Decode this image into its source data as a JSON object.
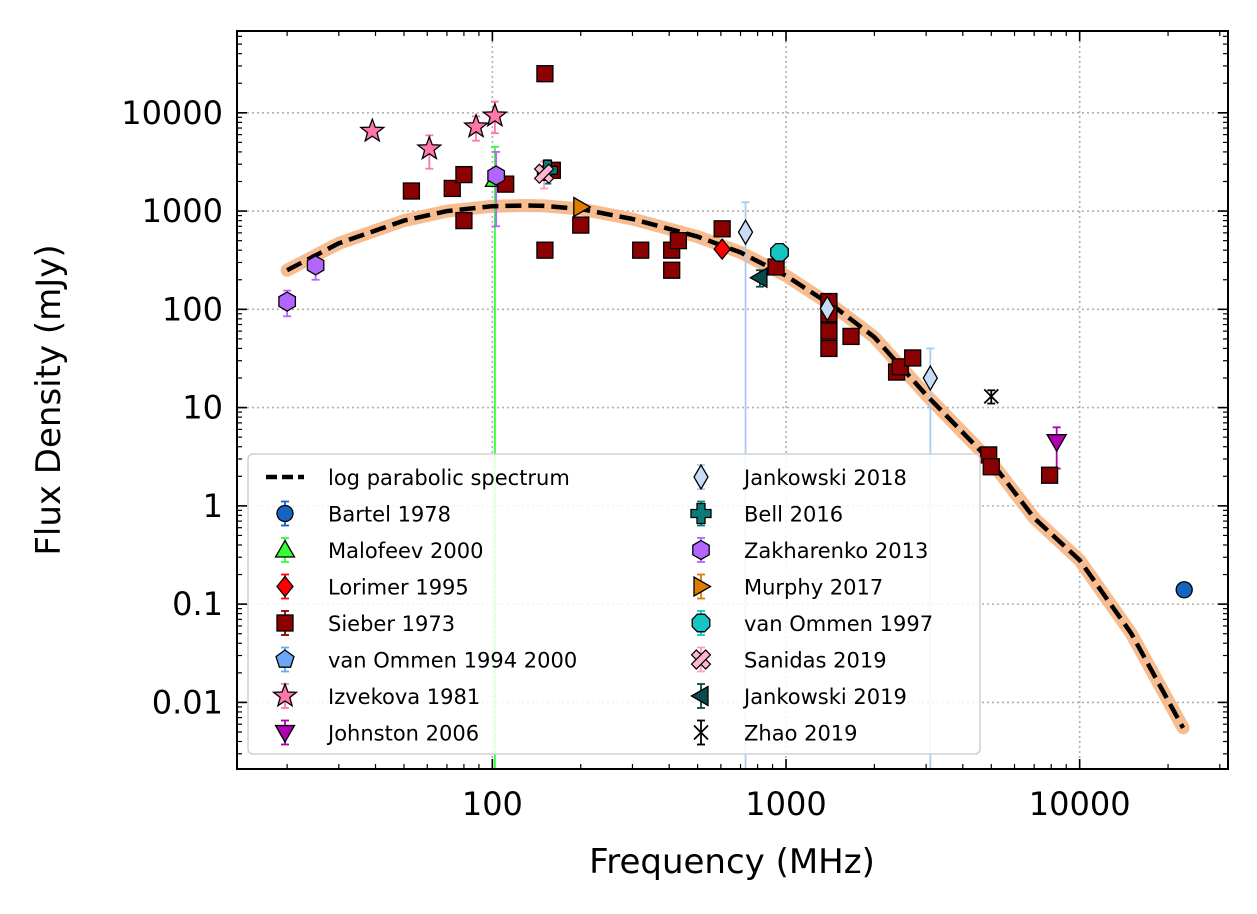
{
  "chart_data": {
    "type": "scatter",
    "title": "",
    "xlabel": "Frequency (MHz)",
    "ylabel": "Flux Density (mJy)",
    "xscale": "log",
    "yscale": "log",
    "xlim": [
      13.5,
      32000
    ],
    "ylim": [
      0.0021,
      68000
    ],
    "xticks": [
      {
        "value": 100,
        "label": "100"
      },
      {
        "value": 1000,
        "label": "1000"
      },
      {
        "value": 10000,
        "label": "10000"
      }
    ],
    "yticks": [
      {
        "value": 0.01,
        "label": "0.01"
      },
      {
        "value": 0.1,
        "label": "0.1"
      },
      {
        "value": 1,
        "label": "1"
      },
      {
        "value": 10,
        "label": "10"
      },
      {
        "value": 100,
        "label": "100"
      },
      {
        "value": 1000,
        "label": "1000"
      },
      {
        "value": 10000,
        "label": "10000"
      }
    ],
    "grid": true,
    "legend_position": "lower-left",
    "model": {
      "name": "log parabolic spectrum",
      "x": [
        20,
        30,
        50,
        70,
        100,
        130,
        150,
        200,
        300,
        500,
        700,
        1000,
        1500,
        2000,
        3000,
        5000,
        7000,
        10000,
        15000,
        22500
      ],
      "y": [
        250,
        470,
        800,
        1000,
        1120,
        1140,
        1130,
        1050,
        830,
        550,
        380,
        220,
        100,
        52,
        13.5,
        2.8,
        0.75,
        0.28,
        0.05,
        0.0055
      ],
      "band_color": "#f7b98a"
    },
    "series": [
      {
        "name": "log parabolic spectrum",
        "marker": "dashline",
        "color": "#000000",
        "points": []
      },
      {
        "name": "Bartel 1978",
        "marker": "circle",
        "color": "#1565c0",
        "ecolor": "#1565c0",
        "points": [
          {
            "x": 22700,
            "y": 0.14
          }
        ]
      },
      {
        "name": "Malofeev 2000",
        "marker": "triangle-up",
        "color": "#33ff33",
        "ecolor": "#33ff33",
        "points": [
          {
            "x": 102,
            "y": 2100,
            "ylo": 0.0021,
            "yhi": 4500
          }
        ]
      },
      {
        "name": "Lorimer 1995",
        "marker": "diamond",
        "color": "#ff0000",
        "ecolor": "#ff0000",
        "points": [
          {
            "x": 606,
            "y": 410
          }
        ]
      },
      {
        "name": "Sieber 1973",
        "marker": "square",
        "color": "#8b0000",
        "ecolor": "#8b0000",
        "points": [
          {
            "x": 53,
            "y": 1600
          },
          {
            "x": 73,
            "y": 1700
          },
          {
            "x": 80,
            "y": 2350
          },
          {
            "x": 80,
            "y": 800
          },
          {
            "x": 111,
            "y": 1880
          },
          {
            "x": 151,
            "y": 25000,
            "ylo": 22000,
            "yhi": 28000
          },
          {
            "x": 151,
            "y": 400
          },
          {
            "x": 160,
            "y": 2600
          },
          {
            "x": 200,
            "y": 720
          },
          {
            "x": 320,
            "y": 400
          },
          {
            "x": 408,
            "y": 400
          },
          {
            "x": 408,
            "y": 250,
            "ylo": 210,
            "yhi": 290
          },
          {
            "x": 430,
            "y": 500
          },
          {
            "x": 606,
            "y": 660
          },
          {
            "x": 925,
            "y": 270
          },
          {
            "x": 1400,
            "y": 120
          },
          {
            "x": 1400,
            "y": 90
          },
          {
            "x": 1400,
            "y": 60
          },
          {
            "x": 1400,
            "y": 40
          },
          {
            "x": 1665,
            "y": 53
          },
          {
            "x": 2380,
            "y": 23
          },
          {
            "x": 2450,
            "y": 26
          },
          {
            "x": 2700,
            "y": 32
          },
          {
            "x": 4900,
            "y": 3.3
          },
          {
            "x": 5000,
            "y": 2.5
          },
          {
            "x": 7900,
            "y": 2.05
          }
        ]
      },
      {
        "name": "van Ommen 1994 2000",
        "marker": "pentagon",
        "color": "#6aa8f7",
        "ecolor": "#6aa8f7",
        "points": []
      },
      {
        "name": "Izvekova 1981",
        "marker": "star",
        "color": "#ff77aa",
        "ecolor": "#ff77aa",
        "points": [
          {
            "x": 39,
            "y": 6500
          },
          {
            "x": 61,
            "y": 4300,
            "ylo": 2700,
            "yhi": 5900
          },
          {
            "x": 88,
            "y": 7200,
            "ylo": 5200,
            "yhi": 9200
          },
          {
            "x": 102,
            "y": 9300,
            "ylo": 6200,
            "yhi": 13000
          }
        ]
      },
      {
        "name": "Johnston 2006",
        "marker": "triangle-down",
        "color": "#b000b0",
        "ecolor": "#b000b0",
        "points": [
          {
            "x": 8350,
            "y": 4.5,
            "ylo": 2.4,
            "yhi": 6.3
          }
        ]
      },
      {
        "name": "Jankowski 2018",
        "marker": "thin-diamond",
        "color": "#c6dcf7",
        "ecolor": "#a8cdf2",
        "points": [
          {
            "x": 728,
            "y": 610,
            "ylo": 0.0021,
            "yhi": 1230
          },
          {
            "x": 1382,
            "y": 102
          },
          {
            "x": 3100,
            "y": 20,
            "ylo": 0.0021,
            "yhi": 40
          }
        ]
      },
      {
        "name": "Bell 2016",
        "marker": "plus",
        "color": "#0a7a7a",
        "ecolor": "#0a7a7a",
        "points": [
          {
            "x": 154,
            "y": 2600,
            "ylo": 1900,
            "yhi": 3300
          }
        ]
      },
      {
        "name": "Zakharenko 2013",
        "marker": "hexagon",
        "color": "#b266ff",
        "ecolor": "#b266ff",
        "points": [
          {
            "x": 20,
            "y": 120,
            "ylo": 85,
            "yhi": 155
          },
          {
            "x": 25,
            "y": 280,
            "ylo": 200,
            "yhi": 360
          },
          {
            "x": 103,
            "y": 2300,
            "ylo": 700,
            "yhi": 4000
          }
        ]
      },
      {
        "name": "Murphy 2017",
        "marker": "triangle-right",
        "color": "#e07b00",
        "ecolor": "#e07b00",
        "points": [
          {
            "x": 200,
            "y": 1100
          }
        ]
      },
      {
        "name": "van Ommen 1997",
        "marker": "octagon",
        "color": "#17c4c4",
        "ecolor": "#17c4c4",
        "points": [
          {
            "x": 950,
            "y": 380
          }
        ]
      },
      {
        "name": "Sanidas 2019",
        "marker": "x-filled",
        "color": "#ffb6d0",
        "ecolor": "#ff9cc0",
        "points": [
          {
            "x": 150,
            "y": 2400,
            "ylo": 1700,
            "yhi": 3200
          }
        ]
      },
      {
        "name": "Jankowski 2019",
        "marker": "triangle-left",
        "color": "#0b4a4a",
        "ecolor": "#0b4a4a",
        "points": [
          {
            "x": 815,
            "y": 210,
            "ylo": 170,
            "yhi": 250
          }
        ]
      },
      {
        "name": "Zhao 2019",
        "marker": "x",
        "color": "#000000",
        "ecolor": "#000000",
        "points": [
          {
            "x": 5000,
            "y": 13,
            "ylo": 11,
            "yhi": 15
          }
        ]
      }
    ]
  }
}
